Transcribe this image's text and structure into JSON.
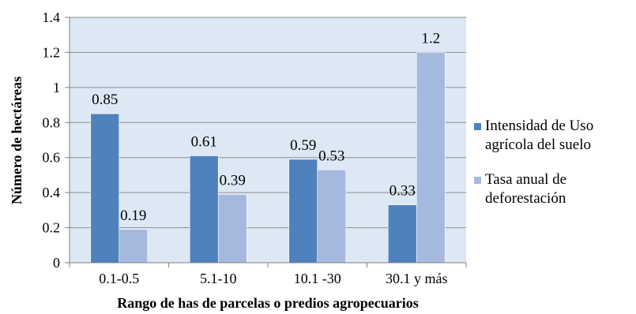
{
  "chart_data": {
    "type": "bar",
    "title": "",
    "xlabel": "Rango de has de parcelas o predios  agropecuarios",
    "ylabel": "Número de hectáreas",
    "categories": [
      "0.1-0.5",
      "5.1-10",
      "10.1 -30",
      "30.1 y más"
    ],
    "series": [
      {
        "name": "Intensidad de Uso agrícola del suelo",
        "values": [
          0.85,
          0.61,
          0.59,
          0.33
        ],
        "color": "#4f81bd",
        "legend_lines": [
          "Intensidad de Uso",
          "agrícola del suelo"
        ]
      },
      {
        "name": "Tasa anual de deforestación",
        "values": [
          0.19,
          0.39,
          0.53,
          1.2
        ],
        "color": "#a5b9de",
        "legend_lines": [
          "Tasa anual de",
          "deforestación"
        ]
      }
    ],
    "data_labels": [
      [
        "0.85",
        "0.61",
        "0.59",
        "0.33"
      ],
      [
        "0.19",
        "0.39",
        "0.53",
        "1.2"
      ]
    ],
    "ylim": [
      0,
      1.4
    ],
    "yticks": [
      "0",
      "0.2",
      "0.4",
      "0.6",
      "0.8",
      "1",
      "1.2",
      "1.4"
    ],
    "grid": true,
    "legend": "right",
    "plot_background": "#dde8f5"
  }
}
